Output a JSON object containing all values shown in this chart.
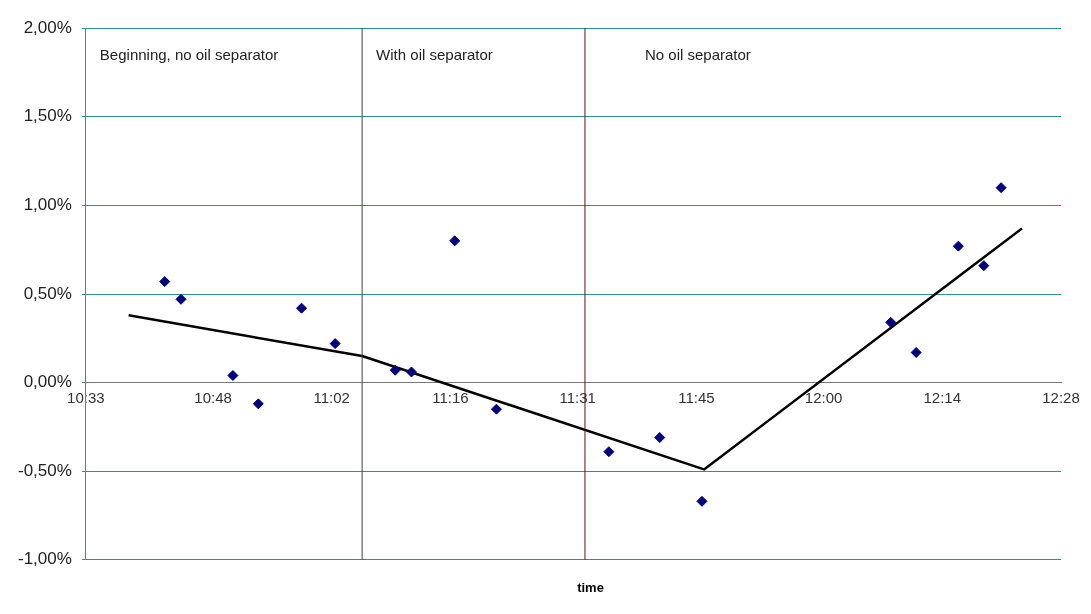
{
  "chart_data": {
    "type": "scatter",
    "xlabel": "time",
    "xlim": [
      10.55,
      12.4667
    ],
    "xticks": [
      {
        "value": 10.55,
        "label": "10:33"
      },
      {
        "value": 10.8,
        "label": "10:48"
      },
      {
        "value": 11.0333,
        "label": "11:02"
      },
      {
        "value": 11.2667,
        "label": "11:16"
      },
      {
        "value": 11.5167,
        "label": "11:31"
      },
      {
        "value": 11.75,
        "label": "11:45"
      },
      {
        "value": 12,
        "label": "12:00"
      },
      {
        "value": 12.2333,
        "label": "12:14"
      },
      {
        "value": 12.4667,
        "label": "12:28"
      }
    ],
    "ylim": [
      -1,
      2
    ],
    "yticks": [
      {
        "value": -1,
        "label": "-1,00%"
      },
      {
        "value": -0.5,
        "label": "-0,50%"
      },
      {
        "value": 0,
        "label": "0,00%"
      },
      {
        "value": 0.5,
        "label": "0,50%"
      },
      {
        "value": 1,
        "label": "1,00%"
      },
      {
        "value": 1.5,
        "label": "1,50%"
      },
      {
        "value": 2,
        "label": "2,00%"
      }
    ],
    "grid": "y",
    "series": [
      {
        "type": "scatter",
        "marker": "diamond",
        "color": "#000080",
        "x": [
          10.705,
          10.737,
          10.839,
          10.889,
          10.974,
          11.04,
          11.158,
          11.19,
          11.275,
          11.357,
          11.578,
          11.678,
          11.761,
          12.132,
          12.182,
          12.265,
          12.315,
          12.349
        ],
        "values": [
          0.57,
          0.47,
          0.04,
          -0.12,
          0.42,
          0.22,
          0.07,
          0.06,
          0.8,
          -0.15,
          -0.39,
          -0.31,
          -0.67,
          0.34,
          0.17,
          0.77,
          0.66,
          1.1
        ]
      },
      {
        "type": "line",
        "color": "#000000",
        "x": [
          10.634,
          11.093,
          11.765,
          12.39
        ],
        "values": [
          0.38,
          0.15,
          -0.49,
          0.87
        ]
      }
    ],
    "ref_lines": [
      {
        "axis": "x",
        "value": 11.093,
        "color": "#404040"
      },
      {
        "axis": "x",
        "value": 11.531,
        "color": "#6b1010"
      }
    ],
    "annotations": [
      "Beginning, no oil separator",
      "With oil separator",
      "No oil separator"
    ]
  }
}
